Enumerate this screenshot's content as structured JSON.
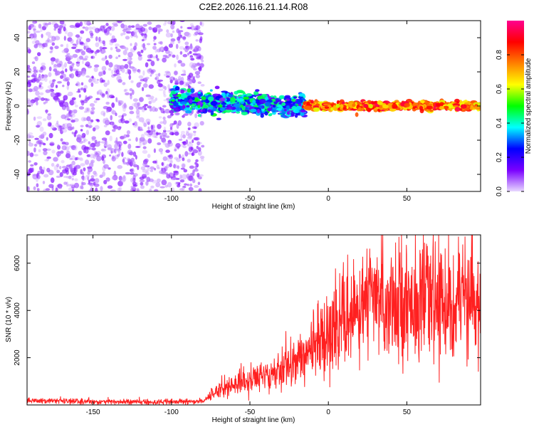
{
  "page_title": "C2E2.2026.116.21.14.R08",
  "chart_data": [
    {
      "type": "heatmap",
      "title": "C2E2.2026.116.21.14.R08",
      "xlabel": "Height of straight line (km)",
      "ylabel": "Frequency (Hz)",
      "xlim": [
        -192,
        97
      ],
      "ylim": [
        -50,
        50
      ],
      "xticks": [
        -150,
        -100,
        -50,
        0,
        50
      ],
      "xtick_labels": [
        "-150",
        "-100",
        "-50",
        "0",
        "50"
      ],
      "yticks": [
        -40,
        -20,
        0,
        20,
        40
      ],
      "ytick_labels": [
        "-40",
        "-20",
        "0",
        "20",
        "40"
      ],
      "grid": false,
      "colorbar": {
        "label": "Normalized spectral amplitude",
        "range": [
          0.0,
          1.0
        ],
        "ticks": [
          0.0,
          0.2,
          0.4,
          0.6,
          0.8
        ],
        "tick_labels": [
          "0.0",
          "0.2",
          "0.4",
          "0.6",
          "0.8"
        ],
        "colormap": [
          "#e8d8ff",
          "#7a00ff",
          "#0000ff",
          "#00ffff",
          "#00ff00",
          "#ffff00",
          "#ff8000",
          "#ff0000",
          "#ff0090"
        ]
      },
      "regions": [
        {
          "x_range": [
            -192,
            -80
          ],
          "freq_center": 0,
          "freq_spread": 50,
          "amplitude": [
            0.02,
            0.12
          ],
          "description": "broadband noise"
        },
        {
          "x_range": [
            -100,
            -15
          ],
          "freq_center_start": 3,
          "freq_center_end": 0,
          "freq_spread": 8,
          "amplitude": [
            0.1,
            0.5
          ]
        },
        {
          "x_range": [
            -15,
            97
          ],
          "freq_center": 0,
          "freq_spread": 3,
          "amplitude": [
            0.6,
            0.95
          ]
        }
      ]
    },
    {
      "type": "line",
      "xlabel": "Height of straight line (km)",
      "ylabel": "SNR (10 * v/v)",
      "xlim": [
        -192,
        97
      ],
      "ylim": [
        0,
        7200
      ],
      "xticks": [
        -150,
        -100,
        -50,
        0,
        50
      ],
      "xtick_labels": [
        "-150",
        "-100",
        "-50",
        "0",
        "50"
      ],
      "yticks": [
        2000,
        4000,
        6000
      ],
      "ytick_labels": [
        "2000",
        "4000",
        "6000"
      ],
      "grid": false,
      "series": [
        {
          "name": "SNR",
          "color": "#ff2020",
          "x": [
            -192,
            -170,
            -150,
            -130,
            -110,
            -90,
            -80,
            -75,
            -70,
            -60,
            -50,
            -40,
            -30,
            -20,
            -15,
            -10,
            -5,
            0,
            5,
            10,
            15,
            20,
            25,
            30,
            40,
            50,
            60,
            70,
            80,
            90,
            97
          ],
          "y": [
            180,
            160,
            140,
            130,
            120,
            130,
            170,
            400,
            650,
            850,
            1050,
            1300,
            1550,
            1850,
            2100,
            2400,
            2800,
            3100,
            3300,
            3500,
            3800,
            4100,
            4300,
            4400,
            4450,
            4450,
            4400,
            4350,
            4300,
            4300,
            4300
          ]
        }
      ]
    }
  ]
}
